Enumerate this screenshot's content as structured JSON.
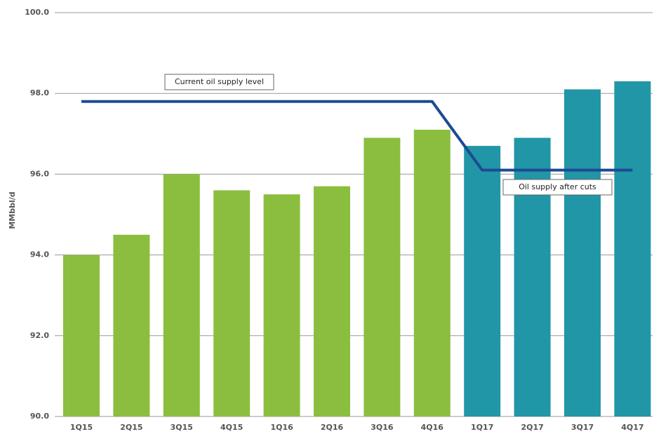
{
  "chart_data": {
    "type": "bar",
    "y_label": "MMbbl/d",
    "categories": [
      "1Q15",
      "2Q15",
      "3Q15",
      "4Q15",
      "1Q16",
      "2Q16",
      "3Q16",
      "4Q16",
      "1Q17",
      "2Q17",
      "3Q17",
      "4Q17"
    ],
    "values": [
      94.0,
      94.5,
      96.0,
      95.6,
      95.5,
      95.7,
      96.9,
      97.1,
      96.7,
      96.9,
      98.1,
      98.3
    ],
    "colors": [
      "#8bbe3f",
      "#8bbe3f",
      "#8bbe3f",
      "#8bbe3f",
      "#8bbe3f",
      "#8bbe3f",
      "#8bbe3f",
      "#8bbe3f",
      "#2196a6",
      "#2196a6",
      "#2196a6",
      "#2196a6"
    ],
    "line": {
      "color": "#1d4a94",
      "values": [
        97.8,
        97.8,
        97.8,
        97.8,
        97.8,
        97.8,
        97.8,
        97.8,
        96.1,
        96.1,
        96.1,
        96.1
      ]
    },
    "annotations": [
      "Current oil supply level",
      "Oil supply after cuts"
    ],
    "ylim": [
      90,
      100
    ],
    "yticks": [
      {
        "value": 90,
        "label": "90.0"
      },
      {
        "value": 92,
        "label": "92.0"
      },
      {
        "value": 94,
        "label": "94.0"
      },
      {
        "value": 96,
        "label": "96.0"
      },
      {
        "value": 98,
        "label": "98.0"
      },
      {
        "value": 100,
        "label": "100.0"
      }
    ],
    "grid": true
  }
}
